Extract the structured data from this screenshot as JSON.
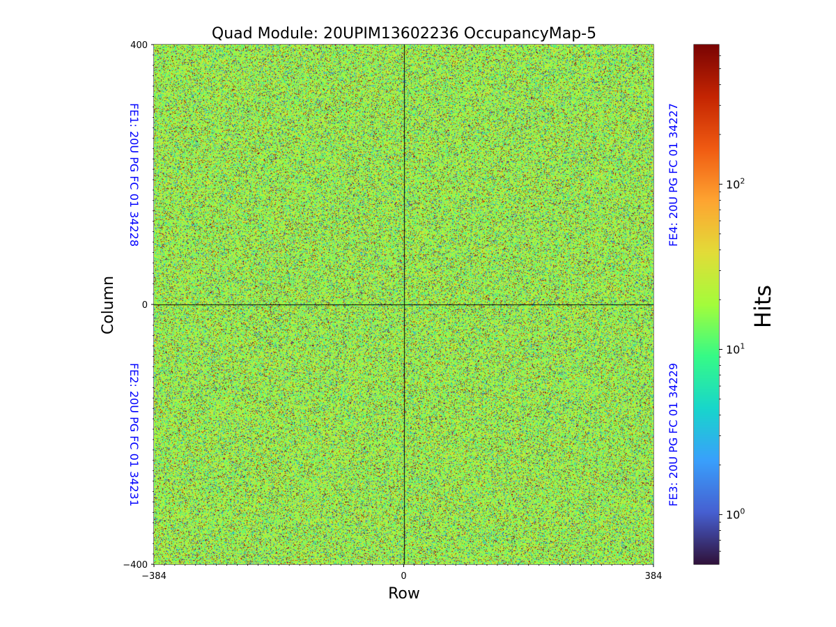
{
  "chart_data": {
    "type": "heatmap",
    "title": "Quad Module: 20UPIM13602236 OccupancyMap-5",
    "xlabel": "Row",
    "ylabel": "Column",
    "xlim": [
      -384,
      384
    ],
    "ylim": [
      -400,
      400
    ],
    "x_ticks": [
      {
        "value": -384,
        "label": "−384"
      },
      {
        "value": 0,
        "label": "0"
      },
      {
        "value": 384,
        "label": "384"
      }
    ],
    "y_ticks": [
      {
        "value": 400,
        "label": "400"
      },
      {
        "value": 0,
        "label": "0"
      },
      {
        "value": -400,
        "label": "−400"
      }
    ],
    "divider_lines": {
      "x": 0,
      "y": 0
    },
    "chip_labels": [
      {
        "name": "fe1",
        "text": "FE1: 20U PG FC 01 34228",
        "side": "left",
        "quadrant": "upper"
      },
      {
        "name": "fe2",
        "text": "FE2: 20U PG FC 01 34231",
        "side": "left",
        "quadrant": "lower"
      },
      {
        "name": "fe4",
        "text": "FE4: 20U PG FC 01 34227",
        "side": "right",
        "quadrant": "upper"
      },
      {
        "name": "fe3",
        "text": "FE3: 20U PG FC 01 34229",
        "side": "right",
        "quadrant": "lower"
      }
    ],
    "label_color": "#0000ff",
    "colorbar": {
      "label": "Hits",
      "scale": "log",
      "colormap": "turbo",
      "range": [
        0.5,
        700
      ],
      "ticks": [
        {
          "value": 1,
          "base": "10",
          "exp": "0"
        },
        {
          "value": 10,
          "base": "10",
          "exp": "1"
        },
        {
          "value": 100,
          "base": "10",
          "exp": "2"
        }
      ]
    },
    "occupancy_distribution": {
      "typical_hits": 20,
      "description_mode": "random noise, mostly 10-60 hits"
    }
  }
}
